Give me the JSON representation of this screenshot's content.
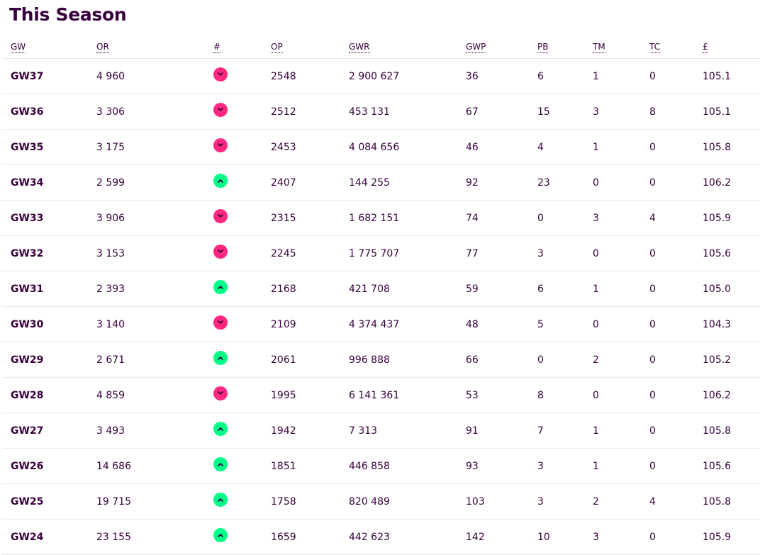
{
  "title": "This Season",
  "columns": [
    "GW",
    "OR",
    "#",
    "OP",
    "GWR",
    "GWP",
    "PB",
    "TM",
    "TC",
    "£"
  ],
  "colors": {
    "down": "#ff2882",
    "up": "#00ff87",
    "text": "#37003c"
  },
  "rows": [
    {
      "gw": "GW37",
      "or": "4 960",
      "move": "down",
      "op": "2548",
      "gwr": "2 900 627",
      "gwp": "36",
      "pb": "6",
      "tm": "1",
      "tc": "0",
      "value": "105.1"
    },
    {
      "gw": "GW36",
      "or": "3 306",
      "move": "down",
      "op": "2512",
      "gwr": "453 131",
      "gwp": "67",
      "pb": "15",
      "tm": "3",
      "tc": "8",
      "value": "105.1"
    },
    {
      "gw": "GW35",
      "or": "3 175",
      "move": "down",
      "op": "2453",
      "gwr": "4 084 656",
      "gwp": "46",
      "pb": "4",
      "tm": "1",
      "tc": "0",
      "value": "105.8"
    },
    {
      "gw": "GW34",
      "or": "2 599",
      "move": "up",
      "op": "2407",
      "gwr": "144 255",
      "gwp": "92",
      "pb": "23",
      "tm": "0",
      "tc": "0",
      "value": "106.2"
    },
    {
      "gw": "GW33",
      "or": "3 906",
      "move": "down",
      "op": "2315",
      "gwr": "1 682 151",
      "gwp": "74",
      "pb": "0",
      "tm": "3",
      "tc": "4",
      "value": "105.9"
    },
    {
      "gw": "GW32",
      "or": "3 153",
      "move": "down",
      "op": "2245",
      "gwr": "1 775 707",
      "gwp": "77",
      "pb": "3",
      "tm": "0",
      "tc": "0",
      "value": "105.6"
    },
    {
      "gw": "GW31",
      "or": "2 393",
      "move": "up",
      "op": "2168",
      "gwr": "421 708",
      "gwp": "59",
      "pb": "6",
      "tm": "1",
      "tc": "0",
      "value": "105.0"
    },
    {
      "gw": "GW30",
      "or": "3 140",
      "move": "down",
      "op": "2109",
      "gwr": "4 374 437",
      "gwp": "48",
      "pb": "5",
      "tm": "0",
      "tc": "0",
      "value": "104.3"
    },
    {
      "gw": "GW29",
      "or": "2 671",
      "move": "up",
      "op": "2061",
      "gwr": "996 888",
      "gwp": "66",
      "pb": "0",
      "tm": "2",
      "tc": "0",
      "value": "105.2"
    },
    {
      "gw": "GW28",
      "or": "4 859",
      "move": "down",
      "op": "1995",
      "gwr": "6 141 361",
      "gwp": "53",
      "pb": "8",
      "tm": "0",
      "tc": "0",
      "value": "106.2"
    },
    {
      "gw": "GW27",
      "or": "3 493",
      "move": "up",
      "op": "1942",
      "gwr": "7 313",
      "gwp": "91",
      "pb": "7",
      "tm": "1",
      "tc": "0",
      "value": "105.8"
    },
    {
      "gw": "GW26",
      "or": "14 686",
      "move": "up",
      "op": "1851",
      "gwr": "446 858",
      "gwp": "93",
      "pb": "3",
      "tm": "1",
      "tc": "0",
      "value": "105.6"
    },
    {
      "gw": "GW25",
      "or": "19 715",
      "move": "up",
      "op": "1758",
      "gwr": "820 489",
      "gwp": "103",
      "pb": "3",
      "tm": "2",
      "tc": "4",
      "value": "105.8"
    },
    {
      "gw": "GW24",
      "or": "23 155",
      "move": "up",
      "op": "1659",
      "gwr": "442 623",
      "gwp": "142",
      "pb": "10",
      "tm": "3",
      "tc": "0",
      "value": "105.9"
    }
  ]
}
